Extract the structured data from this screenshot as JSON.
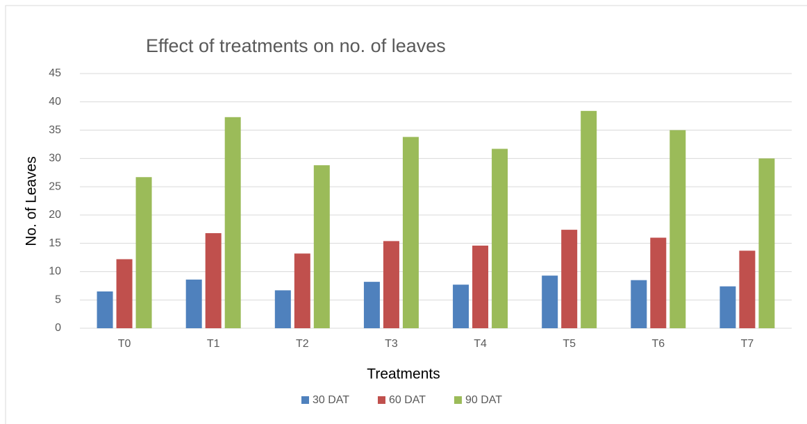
{
  "chart_data": {
    "type": "bar",
    "title": "Effect of treatments on no. of leaves",
    "x_label": "Treatments",
    "y_label": "No. of  Leaves",
    "categories": [
      "T0",
      "T1",
      "T2",
      "T3",
      "T4",
      "T5",
      "T6",
      "T7"
    ],
    "series": [
      {
        "name": "30 DAT",
        "color": "#4f81bd",
        "values": [
          6.5,
          8.6,
          6.7,
          8.2,
          7.7,
          9.3,
          8.5,
          7.4
        ]
      },
      {
        "name": "60 DAT",
        "color": "#c0504d",
        "values": [
          12.2,
          16.8,
          13.2,
          15.4,
          14.6,
          17.4,
          16.0,
          13.7
        ]
      },
      {
        "name": "90 DAT",
        "color": "#9bbb59",
        "values": [
          26.7,
          37.3,
          28.8,
          33.8,
          31.7,
          38.4,
          35.0,
          30.0
        ]
      }
    ],
    "ylim": [
      0,
      45
    ],
    "yticks": [
      0,
      5,
      10,
      15,
      20,
      25,
      30,
      35,
      40,
      45
    ],
    "grid": true,
    "legend": "bottom"
  }
}
